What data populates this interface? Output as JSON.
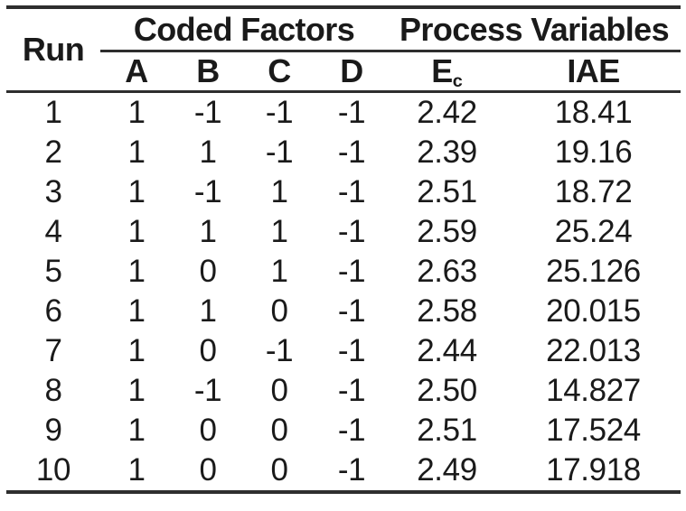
{
  "colors": {
    "text": "#1a1a1a",
    "rule": "#2e2e2e",
    "background": "#ffffff"
  },
  "chart_data": {
    "type": "table",
    "title": "",
    "run_header": "Run",
    "group_headers": [
      "Coded Factors",
      "Process Variables"
    ],
    "columns": [
      {
        "label": "A"
      },
      {
        "label": "B"
      },
      {
        "label": "C"
      },
      {
        "label": "D"
      },
      {
        "label": "E",
        "subscript": "c"
      },
      {
        "label": "IAE"
      }
    ],
    "rows": [
      [
        "1",
        "1",
        "-1",
        "-1",
        "-1",
        "2.42",
        "18.41"
      ],
      [
        "2",
        "1",
        "1",
        "-1",
        "-1",
        "2.39",
        "19.16"
      ],
      [
        "3",
        "1",
        "-1",
        "1",
        "-1",
        "2.51",
        "18.72"
      ],
      [
        "4",
        "1",
        "1",
        "1",
        "-1",
        "2.59",
        "25.24"
      ],
      [
        "5",
        "1",
        "0",
        "1",
        "-1",
        "2.63",
        "25.126"
      ],
      [
        "6",
        "1",
        "1",
        "0",
        "-1",
        "2.58",
        "20.015"
      ],
      [
        "7",
        "1",
        "0",
        "-1",
        "-1",
        "2.44",
        "22.013"
      ],
      [
        "8",
        "1",
        "-1",
        "0",
        "-1",
        "2.50",
        "14.827"
      ],
      [
        "9",
        "1",
        "0",
        "0",
        "-1",
        "2.51",
        "17.524"
      ],
      [
        "10",
        "1",
        "0",
        "0",
        "-1",
        "2.49",
        "17.918"
      ]
    ]
  }
}
